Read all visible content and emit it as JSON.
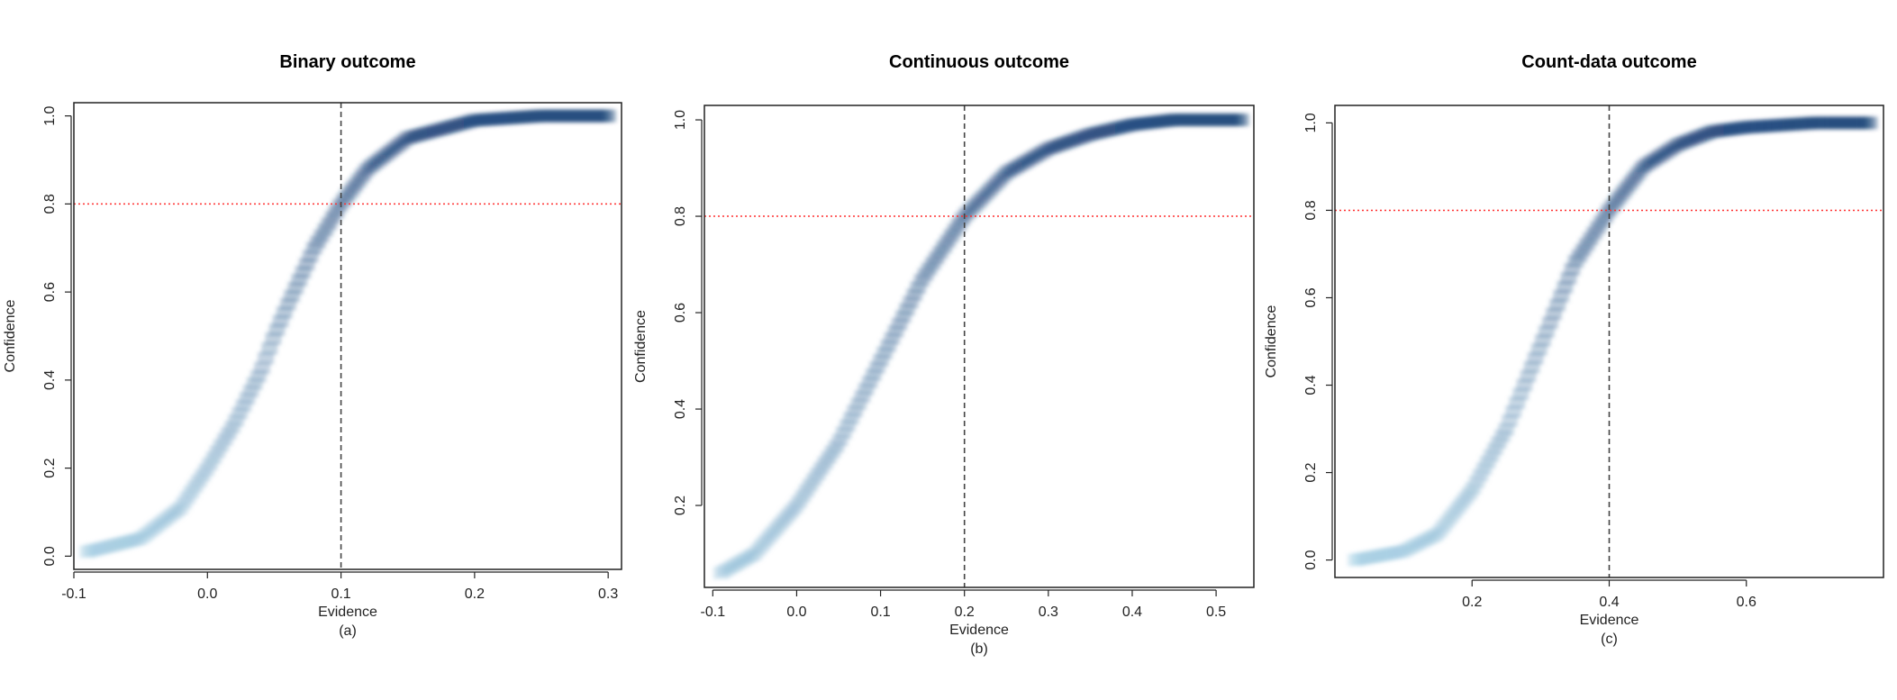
{
  "chart_data": [
    {
      "type": "scatter",
      "title": "Binary outcome",
      "xlabel": "Evidence",
      "ylabel": "Confidence",
      "caption": "(a)",
      "xlim": [
        -0.1,
        0.31
      ],
      "ylim": [
        -0.03,
        1.03
      ],
      "xticks": [
        "-0.1",
        "0.0",
        "0.1",
        "0.2",
        "0.3"
      ],
      "yticks": [
        "0.0",
        "0.2",
        "0.4",
        "0.6",
        "0.8",
        "1.0"
      ],
      "vline": 0.1,
      "hline": 0.8,
      "x": [
        -0.09,
        -0.05,
        -0.02,
        0.0,
        0.02,
        0.04,
        0.05,
        0.06,
        0.08,
        0.1,
        0.12,
        0.15,
        0.2,
        0.25,
        0.3
      ],
      "y": [
        0.01,
        0.04,
        0.11,
        0.2,
        0.3,
        0.42,
        0.5,
        0.57,
        0.7,
        0.8,
        0.88,
        0.95,
        0.99,
        1.0,
        1.0
      ]
    },
    {
      "type": "scatter",
      "title": "Continuous outcome",
      "xlabel": "Evidence",
      "ylabel": "Confidence",
      "caption": "(b)",
      "xlim": [
        -0.11,
        0.545
      ],
      "ylim": [
        0.03,
        1.03
      ],
      "xticks": [
        "-0.1",
        "0.0",
        "0.1",
        "0.2",
        "0.3",
        "0.4",
        "0.5"
      ],
      "yticks": [
        "0.2",
        "0.4",
        "0.6",
        "0.8",
        "1.0"
      ],
      "vline": 0.2,
      "hline": 0.8,
      "x": [
        -0.09,
        -0.05,
        0.0,
        0.05,
        0.1,
        0.15,
        0.2,
        0.25,
        0.3,
        0.35,
        0.4,
        0.45,
        0.53
      ],
      "y": [
        0.06,
        0.1,
        0.2,
        0.33,
        0.5,
        0.67,
        0.8,
        0.89,
        0.94,
        0.97,
        0.99,
        1.0,
        1.0
      ]
    },
    {
      "type": "scatter",
      "title": "Count-data outcome",
      "xlabel": "Evidence",
      "ylabel": "Confidence",
      "caption": "(c)",
      "xlim": [
        0.0,
        0.8
      ],
      "ylim": [
        -0.04,
        1.04
      ],
      "xticks": [
        "0.2",
        "0.4",
        "0.6"
      ],
      "yticks": [
        "0.0",
        "0.2",
        "0.4",
        "0.6",
        "0.8",
        "1.0"
      ],
      "vline": 0.4,
      "hline": 0.8,
      "x": [
        0.03,
        0.1,
        0.15,
        0.2,
        0.25,
        0.3,
        0.35,
        0.4,
        0.45,
        0.5,
        0.55,
        0.6,
        0.7,
        0.78
      ],
      "y": [
        0.0,
        0.02,
        0.06,
        0.16,
        0.3,
        0.49,
        0.68,
        0.8,
        0.9,
        0.95,
        0.98,
        0.99,
        1.0,
        1.0
      ]
    }
  ],
  "colors": {
    "light": "#9ecae1",
    "dark": "#08306b",
    "hline": "#ff3030",
    "vline": "#444444"
  }
}
